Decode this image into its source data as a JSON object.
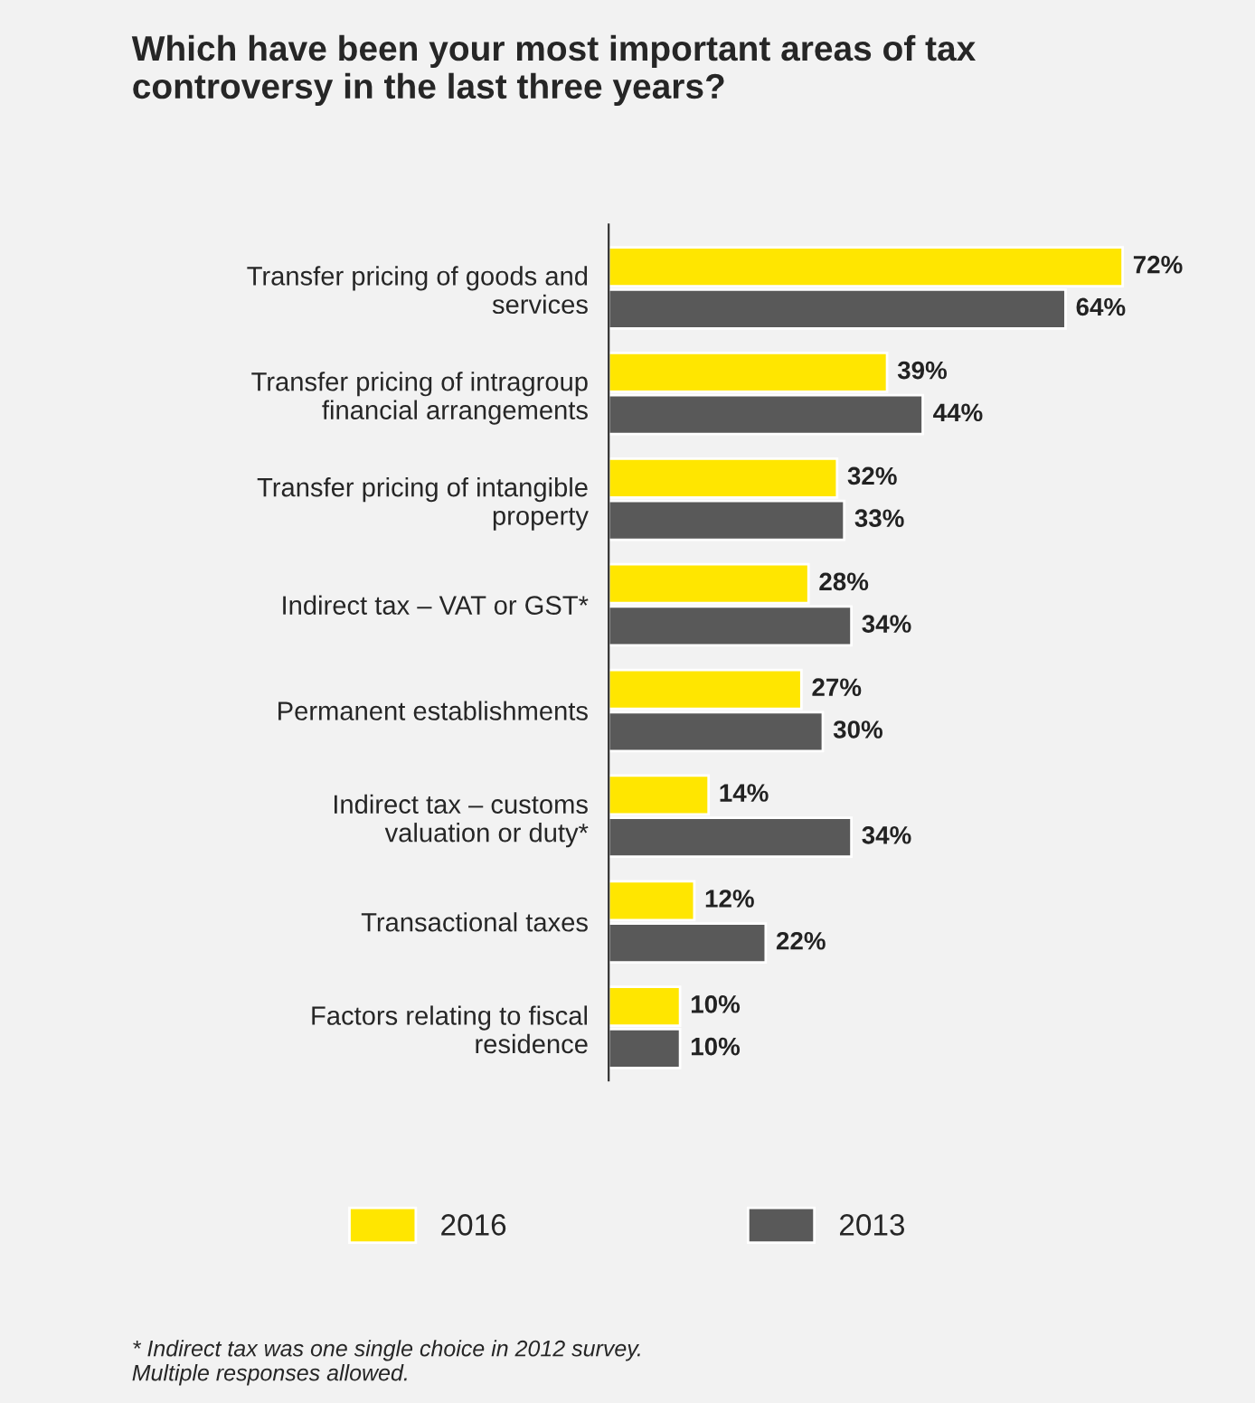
{
  "chart_data": {
    "type": "bar",
    "orientation": "horizontal",
    "title": "Which have been your most important areas of tax\ncontroversy in the last three years?",
    "categories": [
      "Transfer pricing of goods and\nservices",
      "Transfer pricing of intragroup\nfinancial arrangements",
      "Transfer pricing of intangible\nproperty",
      "Indirect tax – VAT or GST*",
      "Permanent establishments",
      "Indirect tax – customs\nvaluation or duty*",
      "Transactional taxes",
      "Factors relating to fiscal\nresidence"
    ],
    "series": [
      {
        "name": "2016",
        "color": "#ffe600",
        "values": [
          72,
          39,
          32,
          28,
          27,
          14,
          12,
          10
        ],
        "value_labels": [
          "72%",
          "39%",
          "32%",
          "28%",
          "27%",
          "14%",
          "12%",
          "10%"
        ]
      },
      {
        "name": "2013",
        "color": "#595959",
        "values": [
          64,
          44,
          33,
          34,
          30,
          34,
          22,
          10
        ],
        "value_labels": [
          "64%",
          "44%",
          "33%",
          "34%",
          "30%",
          "34%",
          "22%",
          "10%"
        ]
      }
    ],
    "legend": "bottom",
    "grid": false,
    "annotations": [
      "* Indirect tax was one single choice in 2012 survey.\nMultiple responses allowed."
    ]
  }
}
